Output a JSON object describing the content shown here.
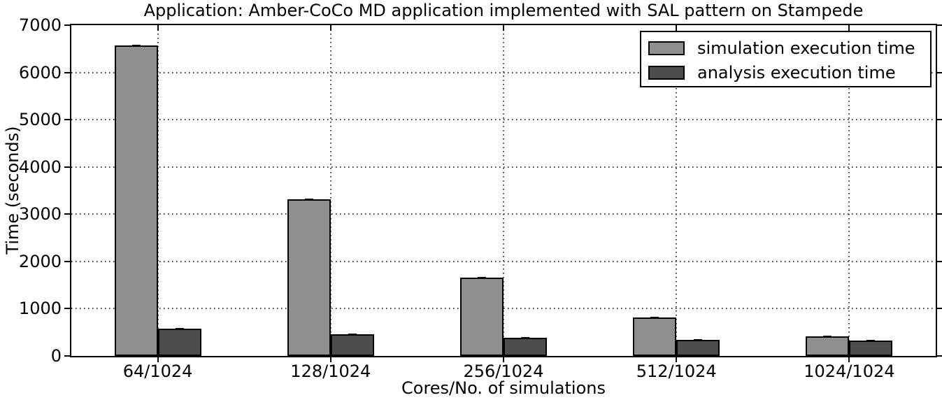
{
  "figure": {
    "title": "Application: Amber-CoCo MD application implemented with SAL pattern on Stampede",
    "xlabel": "Cores/No. of simulations",
    "ylabel": "Time (seconds)"
  },
  "chart_data": {
    "type": "bar",
    "title": "Application: Amber-CoCo MD application implemented with SAL pattern on Stampede",
    "xlabel": "Cores/No. of simulations",
    "ylabel": "Time (seconds)",
    "categories": [
      "64/1024",
      "128/1024",
      "256/1024",
      "512/1024",
      "1024/1024"
    ],
    "series": [
      {
        "name": "simulation execution time",
        "color": "#8f8f8f",
        "values": [
          6570,
          3310,
          1660,
          820,
          410
        ]
      },
      {
        "name": "analysis execution time",
        "color": "#4d4d4d",
        "values": [
          570,
          455,
          380,
          340,
          320
        ]
      }
    ],
    "ylim": [
      0,
      7000
    ],
    "yticks": [
      0,
      1000,
      2000,
      3000,
      4000,
      5000,
      6000,
      7000
    ],
    "grid": true,
    "grid_style": "dotted",
    "legend_position": "upper right",
    "bar_edge_color": "#000000",
    "error_caps": true,
    "background_color": "#ffffff"
  }
}
